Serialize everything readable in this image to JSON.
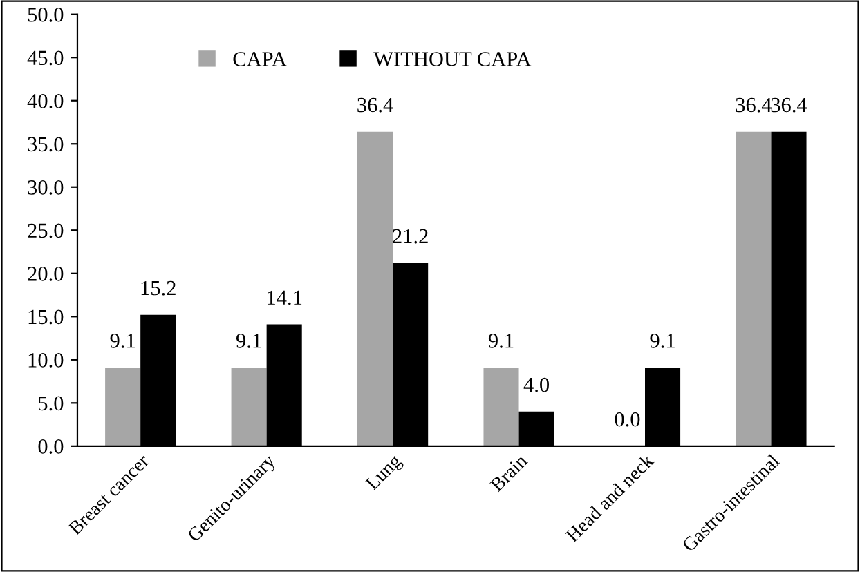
{
  "chart_data": {
    "type": "bar",
    "categories": [
      "Breast cancer",
      "Genito-urinary",
      "Lung",
      "Brain",
      "Head and neck",
      "Gastro-intestinal"
    ],
    "series": [
      {
        "name": "CAPA",
        "color": "#a6a6a6",
        "values": [
          9.1,
          9.1,
          36.4,
          9.1,
          0.0,
          36.4
        ],
        "value_labels": [
          "9.1",
          "9.1",
          "36.4",
          "9.1",
          "0.0",
          "36.4"
        ]
      },
      {
        "name": "WITHOUT CAPA",
        "color": "#000000",
        "values": [
          15.2,
          14.1,
          21.2,
          4.0,
          9.1,
          36.4
        ],
        "value_labels": [
          "15.2",
          "14.1",
          "21.2",
          "4.0",
          "9.1",
          "36.4"
        ]
      }
    ],
    "ylim": [
      0,
      50
    ],
    "yticks": [
      {
        "value": 0,
        "label": "0.0"
      },
      {
        "value": 5,
        "label": "5.0"
      },
      {
        "value": 10,
        "label": "10.0"
      },
      {
        "value": 15,
        "label": "15.0"
      },
      {
        "value": 20,
        "label": "20.0"
      },
      {
        "value": 25,
        "label": "25.0"
      },
      {
        "value": 30,
        "label": "30.0"
      },
      {
        "value": 35,
        "label": "35.0"
      },
      {
        "value": 40,
        "label": "40.0"
      },
      {
        "value": 45,
        "label": "45.0"
      },
      {
        "value": 50,
        "label": "50.0"
      }
    ],
    "grid": false,
    "legend": "top"
  }
}
